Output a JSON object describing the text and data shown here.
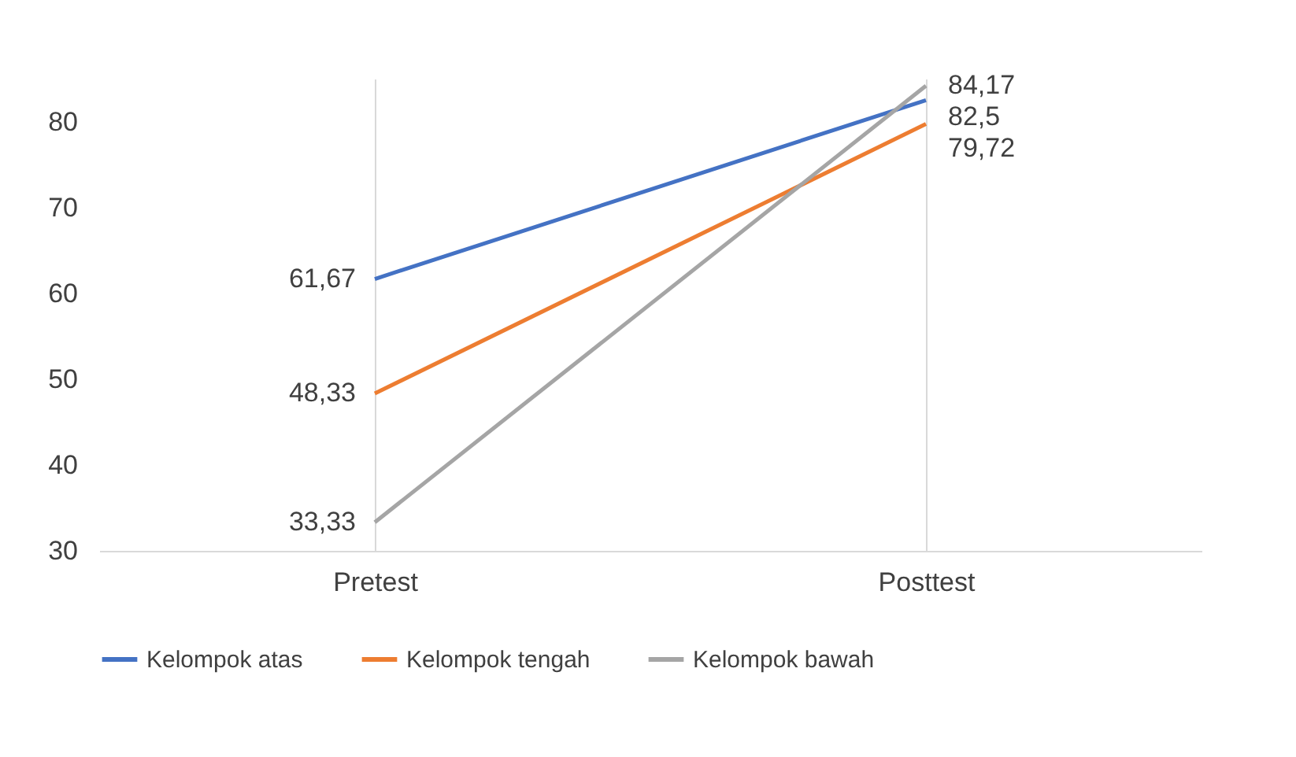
{
  "chart_data": {
    "type": "line",
    "categories": [
      "Pretest",
      "Posttest"
    ],
    "series": [
      {
        "name": "Kelompok atas",
        "color": "#4472c4",
        "values": [
          61.67,
          82.5
        ],
        "value_labels": [
          "61,67",
          "82,5"
        ]
      },
      {
        "name": "Kelompok tengah",
        "color": "#ed7d31",
        "values": [
          48.33,
          79.72
        ],
        "value_labels": [
          "48,33",
          "79,72"
        ]
      },
      {
        "name": "Kelompok bawah",
        "color": "#a5a5a5",
        "values": [
          33.33,
          84.17
        ],
        "value_labels": [
          "33,33",
          "84,17"
        ]
      }
    ],
    "ylim": [
      30,
      85
    ],
    "yticks": [
      30,
      40,
      50,
      60,
      70,
      80
    ],
    "grid": "x",
    "legend": "bottom",
    "marker": "none",
    "line_style": "solid"
  }
}
